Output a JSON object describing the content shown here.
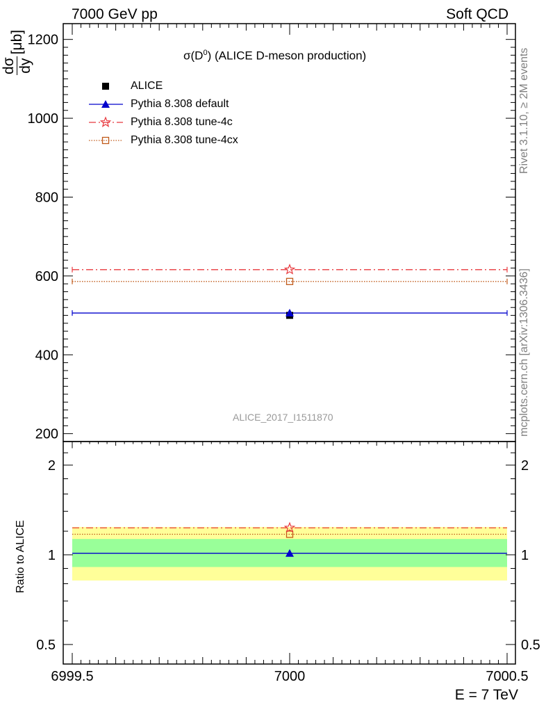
{
  "header": {
    "left": "7000 GeV pp",
    "right": "Soft QCD"
  },
  "side_labels": {
    "rivet": "Rivet 3.1.10, ≥ 2M events",
    "mcplots": "mcplots.cern.ch [arXiv:1306.3436]"
  },
  "chart_data": [
    {
      "type": "line",
      "panel": "main",
      "title_text": "(ALICE D-meson production)",
      "title_symbol": "σ(D",
      "title_sup": "0",
      "title_close": ")",
      "ylabel_num": "dσ",
      "ylabel_den": "dy",
      "ylabel_unit": "[μb]",
      "xlim": [
        6999.5,
        7000.5
      ],
      "ylim": [
        180,
        1240
      ],
      "yticks_major": [
        200,
        400,
        600,
        800,
        1000,
        1200
      ],
      "x_tick_labels": [
        "6999.5",
        "7000",
        "7000.5"
      ],
      "watermark": "ALICE_2017_I1511870",
      "legend_position": "top-left",
      "colors": {
        "data": "#000000",
        "default": "#0000cc",
        "tune4c": "#e8383d",
        "tune4cx": "#c05a1a"
      },
      "series": [
        {
          "name": "ALICE",
          "x": [
            7000
          ],
          "y": [
            500
          ],
          "marker": "square"
        },
        {
          "name": "Pythia 8.308 default",
          "x": [
            6999.5,
            7000,
            7000.5
          ],
          "y": [
            506,
            506,
            506
          ],
          "marker": "triangle"
        },
        {
          "name": "Pythia 8.308 tune-4c",
          "x": [
            6999.5,
            7000,
            7000.5
          ],
          "y": [
            616,
            616,
            616
          ],
          "marker": "star"
        },
        {
          "name": "Pythia 8.308 tune-4cx",
          "x": [
            6999.5,
            7000,
            7000.5
          ],
          "y": [
            586,
            586,
            586
          ],
          "marker": "open-square"
        }
      ]
    },
    {
      "type": "line",
      "panel": "ratio",
      "ylabel": "Ratio to ALICE",
      "log_y": true,
      "ylim": [
        0.43,
        2.4
      ],
      "yticks_labeled": [
        0.5,
        1,
        2
      ],
      "y_tick_labels": [
        "0.5",
        "1",
        "2"
      ],
      "xlim": [
        6999.5,
        7000.5
      ],
      "xlabel": "E = 7 TeV",
      "bands": {
        "green": [
          0.91,
          1.13
        ],
        "yellow": [
          0.82,
          1.24
        ]
      },
      "colors": {
        "green": "#99ff99",
        "yellow": "#ffff99"
      },
      "series": [
        {
          "name": "Pythia 8.308 default",
          "x": [
            6999.5,
            7000,
            7000.5
          ],
          "y": [
            1.012,
            1.012,
            1.012
          ]
        },
        {
          "name": "Pythia 8.308 tune-4c",
          "x": [
            6999.5,
            7000,
            7000.5
          ],
          "y": [
            1.232,
            1.232,
            1.232
          ]
        },
        {
          "name": "Pythia 8.308 tune-4cx",
          "x": [
            6999.5,
            7000,
            7000.5
          ],
          "y": [
            1.172,
            1.172,
            1.172
          ]
        }
      ]
    }
  ]
}
